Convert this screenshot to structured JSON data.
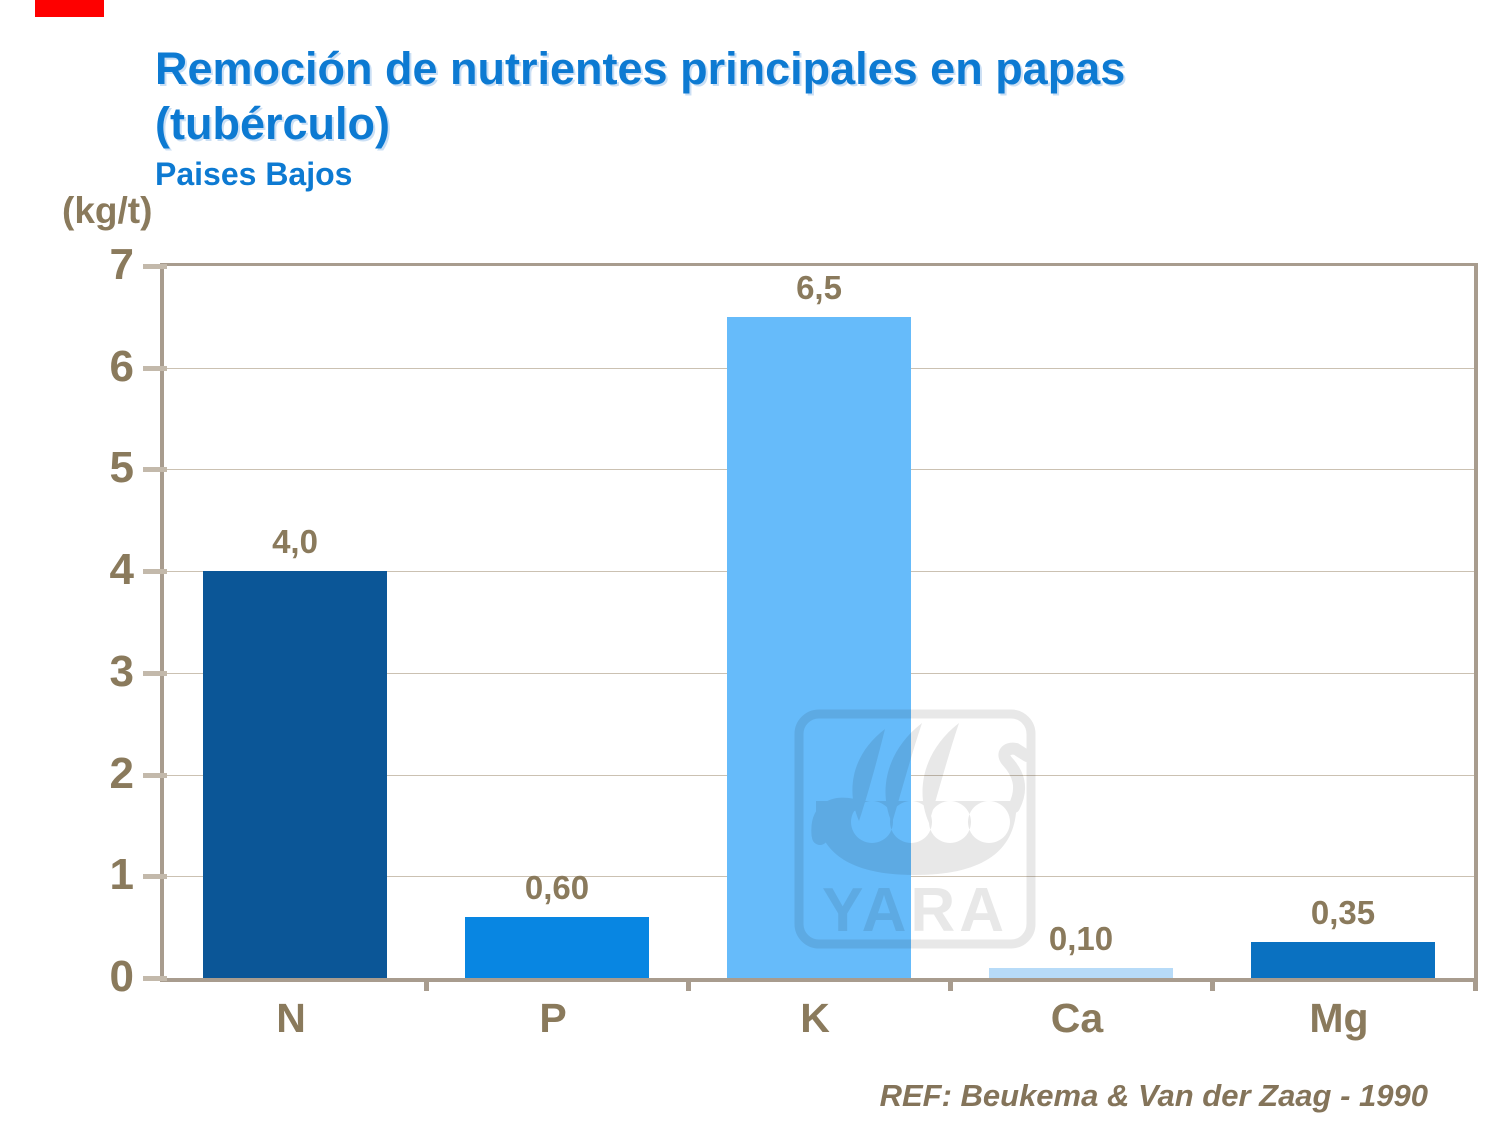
{
  "slide": {
    "accent_bar_color": "#fe0000",
    "title_line1": "Remoción de nutrientes principales en papas",
    "title_line2": "(tubérculo)",
    "subtitle": "Paises Bajos",
    "title_color": "#0d7ad2",
    "unit_label": "(kg/t)",
    "reference": "REF: Beukema & Van der Zaag - 1990"
  },
  "watermark": {
    "text": "YARA",
    "icon": "viking-ship-logo",
    "color": "#e8e8e8"
  },
  "chart_data": {
    "type": "bar",
    "title": "Remoción de nutrientes principales en papas (tubérculo) — Paises Bajos",
    "xlabel": "",
    "ylabel": "(kg/t)",
    "categories": [
      "N",
      "P",
      "K",
      "Ca",
      "Mg"
    ],
    "values": [
      4.0,
      0.6,
      6.5,
      0.1,
      0.35
    ],
    "value_labels": [
      "4,0",
      "0,60",
      "6,5",
      "0,10",
      "0,35"
    ],
    "bar_colors": [
      "#0b5697",
      "#0886e2",
      "#66bbfa",
      "#b7dbf8",
      "#0a71c1"
    ],
    "ylim": [
      0,
      7
    ],
    "yticks": [
      0,
      1,
      2,
      3,
      4,
      5,
      6,
      7
    ],
    "grid": true,
    "legend": false,
    "axis_color": "#a89c8e",
    "gridline_color": "#cbc1b2",
    "label_color": "#8a7a5c"
  }
}
